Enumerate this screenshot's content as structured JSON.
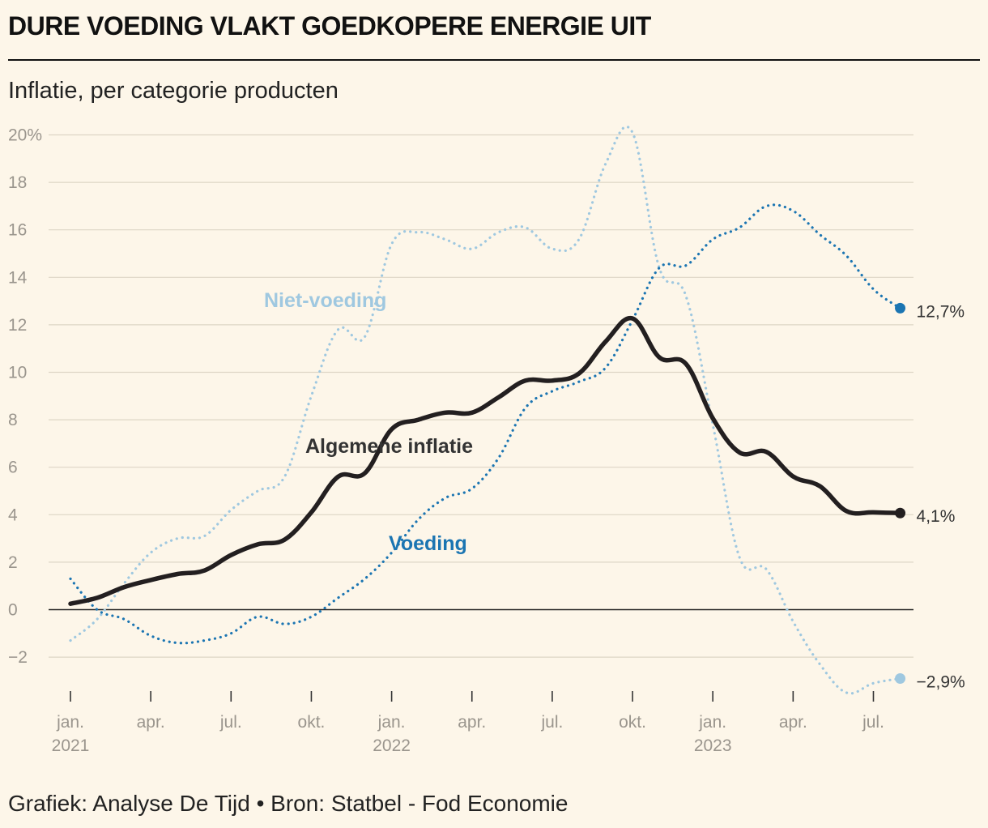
{
  "title": "DURE VOEDING VLAKT GOEDKOPERE ENERGIE UIT",
  "subtitle": "Inflatie, per categorie producten",
  "source": "Grafiek: Analyse De Tijd • Bron: Statbel - Fod Economie",
  "chart_data": {
    "type": "line",
    "title": "DURE VOEDING VLAKT GOEDKOPERE ENERGIE UIT",
    "subtitle": "Inflatie, per categorie producten",
    "ylim": [
      -3.5,
      20
    ],
    "y_ticks": [
      -2,
      0,
      2,
      4,
      6,
      8,
      10,
      12,
      14,
      16,
      18,
      20
    ],
    "y_tick_labels": [
      "−2",
      "0",
      "2",
      "4",
      "6",
      "8",
      "10",
      "12",
      "14",
      "16",
      "18",
      "20%"
    ],
    "grid": true,
    "x": [
      "2021-01",
      "2021-02",
      "2021-03",
      "2021-04",
      "2021-05",
      "2021-06",
      "2021-07",
      "2021-08",
      "2021-09",
      "2021-10",
      "2021-11",
      "2021-12",
      "2022-01",
      "2022-02",
      "2022-03",
      "2022-04",
      "2022-05",
      "2022-06",
      "2022-07",
      "2022-08",
      "2022-09",
      "2022-10",
      "2022-11",
      "2022-12",
      "2023-01",
      "2023-02",
      "2023-03",
      "2023-04",
      "2023-05",
      "2023-06",
      "2023-07",
      "2023-08"
    ],
    "x_ticks": [
      "2021-01",
      "2021-04",
      "2021-07",
      "2021-10",
      "2022-01",
      "2022-04",
      "2022-07",
      "2022-10",
      "2023-01",
      "2023-04",
      "2023-07"
    ],
    "x_tick_labels": [
      [
        "jan.",
        "2021"
      ],
      [
        "apr.",
        ""
      ],
      [
        "jul.",
        ""
      ],
      [
        "okt.",
        ""
      ],
      [
        "jan.",
        "2022"
      ],
      [
        "apr.",
        ""
      ],
      [
        "jul.",
        ""
      ],
      [
        "okt.",
        ""
      ],
      [
        "jan.",
        "2023"
      ],
      [
        "apr.",
        ""
      ],
      [
        "jul.",
        ""
      ]
    ],
    "series": [
      {
        "name": "Niet-voeding",
        "color": "#9fc8e0",
        "style": "dotted",
        "values": [
          -1.3,
          -0.4,
          1.1,
          2.4,
          3.0,
          3.1,
          4.2,
          5.0,
          5.6,
          9.0,
          11.8,
          11.5,
          15.4,
          15.9,
          15.6,
          15.2,
          15.9,
          16.1,
          15.2,
          15.6,
          18.8,
          20.1,
          14.4,
          13.2,
          7.8,
          2.2,
          1.7,
          -0.5,
          -2.3,
          -3.5,
          -3.1,
          -2.9
        ],
        "end_label": "−2,9%"
      },
      {
        "name": "Voeding",
        "color": "#1b75b2",
        "style": "dotted",
        "values": [
          1.3,
          0.0,
          -0.4,
          -1.1,
          -1.4,
          -1.3,
          -1.0,
          -0.3,
          -0.6,
          -0.3,
          0.5,
          1.3,
          2.4,
          3.8,
          4.7,
          5.1,
          6.4,
          8.5,
          9.2,
          9.6,
          10.2,
          12.2,
          14.4,
          14.5,
          15.6,
          16.1,
          17.0,
          16.8,
          15.8,
          14.9,
          13.5,
          12.7
        ],
        "end_label": "12,7%"
      },
      {
        "name": "Algemene inflatie",
        "color": "#231f20",
        "style": "solid",
        "values": [
          0.25,
          0.5,
          0.95,
          1.25,
          1.5,
          1.65,
          2.3,
          2.75,
          2.95,
          4.1,
          5.6,
          5.75,
          7.6,
          8.0,
          8.3,
          8.3,
          8.95,
          9.65,
          9.65,
          9.95,
          11.3,
          12.27,
          10.63,
          10.35,
          8.06,
          6.62,
          6.65,
          5.61,
          5.2,
          4.15,
          4.1,
          4.07
        ],
        "end_label": "4,1%"
      }
    ]
  }
}
